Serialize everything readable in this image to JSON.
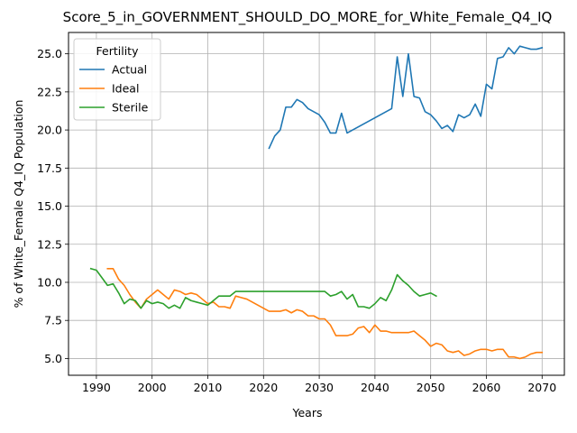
{
  "chart_data": {
    "type": "line",
    "title": "Score_5_in_GOVERNMENT_SHOULD_DO_MORE_for_White_Female_Q4_IQ",
    "xlabel": "Years",
    "ylabel": "% of White_Female Q4_IQ Population",
    "xlim": [
      1985,
      2074
    ],
    "ylim": [
      3.9,
      26.4
    ],
    "xticks": [
      1990,
      2000,
      2010,
      2020,
      2030,
      2040,
      2050,
      2060,
      2070
    ],
    "yticks": [
      5.0,
      7.5,
      10.0,
      12.5,
      15.0,
      17.5,
      20.0,
      22.5,
      25.0
    ],
    "ytick_labels": [
      "5.0",
      "7.5",
      "10.0",
      "12.5",
      "15.0",
      "17.5",
      "20.0",
      "22.5",
      "25.0"
    ],
    "grid": true,
    "legend": {
      "title": "Fertility",
      "placement": "upper-left"
    },
    "series": [
      {
        "name": "Actual",
        "color": "#1f77b4",
        "x": [
          2021,
          2022,
          2023,
          2024,
          2025,
          2026,
          2027,
          2028,
          2029,
          2030,
          2031,
          2032,
          2033,
          2034,
          2035,
          2036,
          2037,
          2038,
          2039,
          2040,
          2041,
          2042,
          2043,
          2044,
          2045,
          2046,
          2047,
          2048,
          2049,
          2050,
          2051,
          2052,
          2053,
          2054,
          2055,
          2056,
          2057,
          2058,
          2059,
          2060,
          2061,
          2062,
          2063,
          2064,
          2065,
          2066,
          2067,
          2068,
          2069,
          2070
        ],
        "y": [
          18.8,
          19.6,
          20.0,
          21.5,
          21.5,
          22.0,
          21.8,
          21.4,
          21.2,
          21.0,
          20.5,
          19.8,
          19.8,
          21.1,
          19.8,
          20.0,
          20.2,
          20.4,
          20.6,
          20.8,
          21.0,
          21.2,
          21.4,
          24.8,
          22.2,
          25.0,
          22.2,
          22.1,
          21.2,
          21.0,
          20.6,
          20.1,
          20.3,
          19.9,
          21.0,
          20.8,
          21.0,
          21.7,
          20.9,
          23.0,
          22.7,
          24.7,
          24.8,
          25.4,
          25.0,
          25.5,
          25.4,
          25.3,
          25.3,
          25.4
        ]
      },
      {
        "name": "Ideal",
        "color": "#ff7f0e",
        "x": [
          1992,
          1993,
          1994,
          1995,
          1996,
          1997,
          1998,
          1999,
          2000,
          2001,
          2002,
          2003,
          2004,
          2005,
          2006,
          2007,
          2008,
          2009,
          2010,
          2011,
          2012,
          2013,
          2014,
          2015,
          2016,
          2017,
          2018,
          2019,
          2020,
          2021,
          2022,
          2023,
          2024,
          2025,
          2026,
          2027,
          2028,
          2029,
          2030,
          2031,
          2032,
          2033,
          2034,
          2035,
          2036,
          2037,
          2038,
          2039,
          2040,
          2041,
          2042,
          2043,
          2044,
          2045,
          2046,
          2047,
          2048,
          2049,
          2050,
          2051,
          2052,
          2053,
          2054,
          2055,
          2056,
          2057,
          2058,
          2059,
          2060,
          2061,
          2062,
          2063,
          2064,
          2065,
          2066,
          2067,
          2068,
          2069,
          2070
        ],
        "y": [
          10.9,
          10.9,
          10.2,
          9.8,
          9.2,
          8.7,
          8.3,
          8.9,
          9.2,
          9.5,
          9.2,
          8.9,
          9.5,
          9.4,
          9.2,
          9.3,
          9.2,
          8.9,
          8.6,
          8.7,
          8.4,
          8.4,
          8.3,
          9.1,
          9.0,
          8.9,
          8.7,
          8.5,
          8.3,
          8.1,
          8.1,
          8.1,
          8.2,
          8.0,
          8.2,
          8.1,
          7.8,
          7.8,
          7.6,
          7.6,
          7.2,
          6.5,
          6.5,
          6.5,
          6.6,
          7.0,
          7.1,
          6.7,
          7.2,
          6.8,
          6.8,
          6.7,
          6.7,
          6.7,
          6.7,
          6.8,
          6.5,
          6.2,
          5.8,
          6.0,
          5.9,
          5.5,
          5.4,
          5.5,
          5.2,
          5.3,
          5.5,
          5.6,
          5.6,
          5.5,
          5.6,
          5.6,
          5.1,
          5.1,
          5.0,
          5.1,
          5.3,
          5.4,
          5.4
        ]
      },
      {
        "name": "Sterile",
        "color": "#2ca02c",
        "x": [
          1989,
          1990,
          1991,
          1992,
          1993,
          1994,
          1995,
          1996,
          1997,
          1998,
          1999,
          2000,
          2001,
          2002,
          2003,
          2004,
          2005,
          2006,
          2007,
          2008,
          2009,
          2010,
          2011,
          2012,
          2013,
          2014,
          2015,
          2016,
          2017,
          2018,
          2019,
          2020,
          2021,
          2022,
          2023,
          2024,
          2025,
          2026,
          2027,
          2028,
          2029,
          2030,
          2031,
          2032,
          2033,
          2034,
          2035,
          2036,
          2037,
          2038,
          2039,
          2040,
          2041,
          2042,
          2043,
          2044,
          2045,
          2046,
          2047,
          2048,
          2049,
          2050,
          2051
        ],
        "y": [
          10.9,
          10.8,
          10.3,
          9.8,
          9.9,
          9.3,
          8.6,
          8.9,
          8.8,
          8.3,
          8.8,
          8.6,
          8.7,
          8.6,
          8.3,
          8.5,
          8.3,
          9.0,
          8.8,
          8.7,
          8.6,
          8.5,
          8.8,
          9.1,
          9.1,
          9.1,
          9.4,
          9.4,
          9.4,
          9.4,
          9.4,
          9.4,
          9.4,
          9.4,
          9.4,
          9.4,
          9.4,
          9.4,
          9.4,
          9.4,
          9.4,
          9.4,
          9.4,
          9.1,
          9.2,
          9.4,
          8.9,
          9.2,
          8.4,
          8.4,
          8.3,
          8.6,
          9.0,
          8.8,
          9.5,
          10.5,
          10.1,
          9.8,
          9.4,
          9.1,
          9.2,
          9.3,
          9.1
        ]
      }
    ]
  }
}
